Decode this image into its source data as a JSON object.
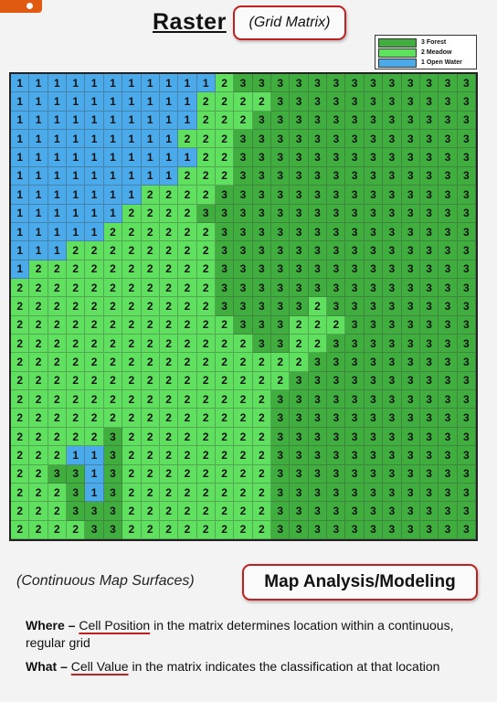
{
  "header": {
    "title": "Raster",
    "subtitle": "(Grid Matrix)"
  },
  "legend": {
    "items": [
      {
        "value": "3",
        "label": "3  Forest",
        "color": "#3fae3f"
      },
      {
        "value": "2",
        "label": "2  Meadow",
        "color": "#5fe05f"
      },
      {
        "value": "1",
        "label": "1  Open Water",
        "color": "#4aaaea"
      }
    ]
  },
  "colors": {
    "1": "#4aaaea",
    "2": "#5fe05f",
    "3": "#3fae3f"
  },
  "grid": {
    "rows": [
      "1111111111123333333333333",
      "1111111111222233333333333",
      "1111111111222333333333333",
      "1111111112223333333333333",
      "1111111111223333333333333",
      "1111111112223333333333333",
      "1111111222233333333333333",
      "1111112222333333333333333",
      "1111122222233333333333333",
      "1112222222233333333333333",
      "1222222222233333333333333",
      "2222222222233333333333333",
      "2222222222233333233333333",
      "2222222222223332223333333",
      "2222222222222332233333333",
      "2222222222222222333333333",
      "2222222222222223333333333",
      "2222222222222233333333333",
      "2222222222222233333333333",
      "2222232222222233333333333",
      "2221132222222233333333333",
      "2233132222222233333333333",
      "2223132222222233333333333",
      "2223332222222233333333333",
      "2222332222222233333333333"
    ]
  },
  "footer": {
    "left_caption": "(Continuous Map Surfaces)",
    "box_label": "Map Analysis/Modeling",
    "where_lead": "Where –",
    "where_term": "Cell Position",
    "where_rest": " in the matrix determines location within a continuous, regular grid",
    "what_lead": "What –",
    "what_term": "Cell Value",
    "what_rest": " in the matrix indicates the classification at that location"
  }
}
